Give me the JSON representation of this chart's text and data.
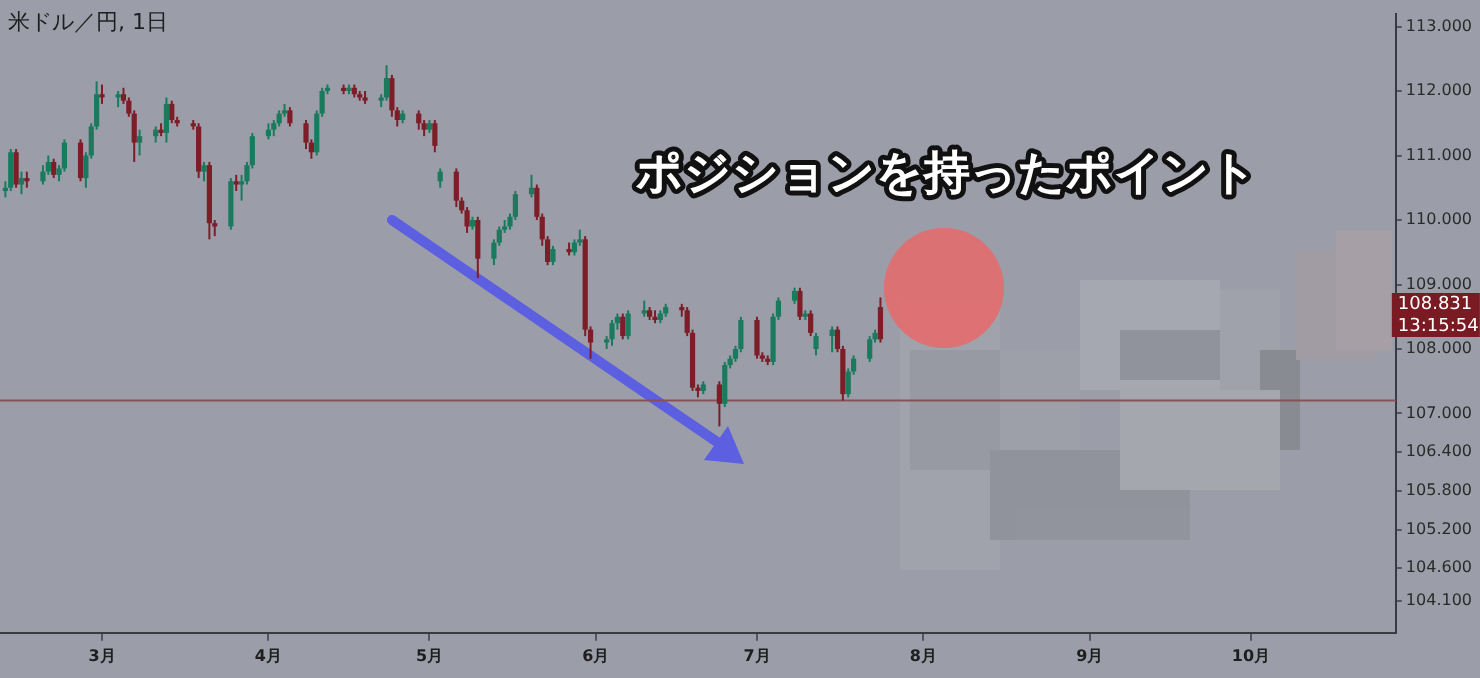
{
  "chart_data": {
    "type": "candlestick",
    "title": "米ドル／円, 1日",
    "annotations": [
      "ポジションを持ったポイント",
      "108.831",
      "13:15:54"
    ],
    "x": [
      "--02-11",
      "--02-12",
      "--02-13",
      "--02-14",
      "--02-15",
      "--02-18",
      "--02-19",
      "--02-20",
      "--02-21",
      "--02-22",
      "--02-25",
      "--02-26",
      "--02-27",
      "--02-28",
      "--03-01",
      "--03-04",
      "--03-05",
      "--03-06",
      "--03-07",
      "--03-08",
      "--03-11",
      "--03-12",
      "--03-13",
      "--03-14",
      "--03-15",
      "--03-18",
      "--03-19",
      "--03-20",
      "--03-21",
      "--03-22",
      "--03-25",
      "--03-26",
      "--03-27",
      "--03-28",
      "--03-29",
      "--04-01",
      "--04-02",
      "--04-03",
      "--04-04",
      "--04-05",
      "--04-08",
      "--04-09",
      "--04-10",
      "--04-11",
      "--04-12",
      "--04-15",
      "--04-16",
      "--04-17",
      "--04-18",
      "--04-19",
      "--04-22",
      "--04-23",
      "--04-24",
      "--04-25",
      "--04-26",
      "--04-29",
      "--04-30",
      "--05-01",
      "--05-02",
      "--05-03",
      "--05-06",
      "--05-07",
      "--05-08",
      "--05-09",
      "--05-10",
      "--05-13",
      "--05-14",
      "--05-15",
      "--05-16",
      "--05-17",
      "--05-20",
      "--05-21",
      "--05-22",
      "--05-23",
      "--05-24",
      "--05-27",
      "--05-28",
      "--05-29",
      "--05-30",
      "--05-31",
      "--06-03",
      "--06-04",
      "--06-05",
      "--06-06",
      "--06-07",
      "--06-10",
      "--06-11",
      "--06-12",
      "--06-13",
      "--06-14",
      "--06-17",
      "--06-18",
      "--06-19",
      "--06-20",
      "--06-21",
      "--06-24",
      "--06-25",
      "--06-26",
      "--06-27",
      "--06-28",
      "--07-01",
      "--07-02",
      "--07-03",
      "--07-04",
      "--07-05",
      "--07-08",
      "--07-09",
      "--07-10",
      "--07-11",
      "--07-12",
      "--07-15",
      "--07-16",
      "--07-17",
      "--07-18",
      "--07-19",
      "--07-22",
      "--07-23",
      "--07-24"
    ],
    "ohlc": [
      [
        110.45,
        110.6,
        110.35,
        110.5
      ],
      [
        110.5,
        111.1,
        110.45,
        111.05
      ],
      [
        111.05,
        111.1,
        110.5,
        110.55
      ],
      [
        110.55,
        110.75,
        110.4,
        110.65
      ],
      [
        110.65,
        110.75,
        110.5,
        110.6
      ],
      [
        110.6,
        110.85,
        110.55,
        110.75
      ],
      [
        110.75,
        111.0,
        110.7,
        110.9
      ],
      [
        110.9,
        110.95,
        110.65,
        110.7
      ],
      [
        110.7,
        110.85,
        110.6,
        110.8
      ],
      [
        110.8,
        111.25,
        110.75,
        111.2
      ],
      [
        111.2,
        111.25,
        110.6,
        110.65
      ],
      [
        110.65,
        111.05,
        110.5,
        111.0
      ],
      [
        111.0,
        111.5,
        110.95,
        111.45
      ],
      [
        111.45,
        112.15,
        111.4,
        111.95
      ],
      [
        111.95,
        112.1,
        111.8,
        111.9
      ],
      [
        111.9,
        112.0,
        111.75,
        111.95
      ],
      [
        111.95,
        112.05,
        111.8,
        111.85
      ],
      [
        111.85,
        111.9,
        111.6,
        111.65
      ],
      [
        111.65,
        111.7,
        110.9,
        111.2
      ],
      [
        111.2,
        111.4,
        111.0,
        111.3
      ],
      [
        111.3,
        111.45,
        111.2,
        111.4
      ],
      [
        111.4,
        111.5,
        111.3,
        111.35
      ],
      [
        111.35,
        111.9,
        111.2,
        111.8
      ],
      [
        111.8,
        111.85,
        111.5,
        111.55
      ],
      [
        111.55,
        111.6,
        111.45,
        111.5
      ],
      [
        111.5,
        111.55,
        111.4,
        111.45
      ],
      [
        111.45,
        111.5,
        110.65,
        110.75
      ],
      [
        110.75,
        110.9,
        110.6,
        110.85
      ],
      [
        110.85,
        110.9,
        109.7,
        109.95
      ],
      [
        109.95,
        110.0,
        109.75,
        109.9
      ],
      [
        109.9,
        110.65,
        109.85,
        110.6
      ],
      [
        110.6,
        110.7,
        110.45,
        110.55
      ],
      [
        110.55,
        110.7,
        110.3,
        110.6
      ],
      [
        110.6,
        110.9,
        110.55,
        110.85
      ],
      [
        110.85,
        111.35,
        110.8,
        111.3
      ],
      [
        111.3,
        111.5,
        111.25,
        111.4
      ],
      [
        111.4,
        111.55,
        111.3,
        111.5
      ],
      [
        111.5,
        111.7,
        111.45,
        111.65
      ],
      [
        111.65,
        111.8,
        111.6,
        111.7
      ],
      [
        111.7,
        111.75,
        111.45,
        111.5
      ],
      [
        111.5,
        111.55,
        111.1,
        111.2
      ],
      [
        111.2,
        111.25,
        110.95,
        111.05
      ],
      [
        111.05,
        111.7,
        111.0,
        111.65
      ],
      [
        111.65,
        112.05,
        111.6,
        112.0
      ],
      [
        112.0,
        112.1,
        111.95,
        112.05
      ],
      [
        112.05,
        112.1,
        111.95,
        112.0
      ],
      [
        112.0,
        112.1,
        111.95,
        112.05
      ],
      [
        112.05,
        112.1,
        111.9,
        111.95
      ],
      [
        111.95,
        112.0,
        111.85,
        111.9
      ],
      [
        111.9,
        112.0,
        111.8,
        111.85
      ],
      [
        111.85,
        111.95,
        111.75,
        111.9
      ],
      [
        111.9,
        112.4,
        111.85,
        112.2
      ],
      [
        112.2,
        112.25,
        111.6,
        111.7
      ],
      [
        111.7,
        111.75,
        111.45,
        111.55
      ],
      [
        111.55,
        111.7,
        111.5,
        111.65
      ],
      [
        111.65,
        111.7,
        111.4,
        111.5
      ],
      [
        111.5,
        111.55,
        111.3,
        111.4
      ],
      [
        111.4,
        111.55,
        111.35,
        111.5
      ],
      [
        111.5,
        111.55,
        111.05,
        111.15
      ],
      [
        110.6,
        110.8,
        110.5,
        110.75
      ],
      [
        110.75,
        110.8,
        110.2,
        110.3
      ],
      [
        110.3,
        110.35,
        110.1,
        110.15
      ],
      [
        110.15,
        110.2,
        109.8,
        109.9
      ],
      [
        109.9,
        110.05,
        109.85,
        110.0
      ],
      [
        110.0,
        110.05,
        109.1,
        109.4
      ],
      [
        109.4,
        109.7,
        109.3,
        109.65
      ],
      [
        109.65,
        109.9,
        109.6,
        109.85
      ],
      [
        109.85,
        110.0,
        109.8,
        109.9
      ],
      [
        109.9,
        110.1,
        109.85,
        110.05
      ],
      [
        110.05,
        110.45,
        110.0,
        110.4
      ],
      [
        110.4,
        110.7,
        110.35,
        110.5
      ],
      [
        110.5,
        110.55,
        110.0,
        110.05
      ],
      [
        110.05,
        110.1,
        109.6,
        109.7
      ],
      [
        109.7,
        109.75,
        109.3,
        109.35
      ],
      [
        109.35,
        109.6,
        109.3,
        109.55
      ],
      [
        109.55,
        109.65,
        109.45,
        109.5
      ],
      [
        109.5,
        109.7,
        109.45,
        109.65
      ],
      [
        109.65,
        109.85,
        109.6,
        109.7
      ],
      [
        109.7,
        109.75,
        108.2,
        108.3
      ],
      [
        108.3,
        108.35,
        107.85,
        108.1
      ],
      [
        108.1,
        108.2,
        108.0,
        108.15
      ],
      [
        108.15,
        108.45,
        108.05,
        108.4
      ],
      [
        108.4,
        108.55,
        108.3,
        108.5
      ],
      [
        108.5,
        108.55,
        108.15,
        108.2
      ],
      [
        108.2,
        108.6,
        108.15,
        108.55
      ],
      [
        108.55,
        108.75,
        108.5,
        108.6
      ],
      [
        108.6,
        108.65,
        108.45,
        108.5
      ],
      [
        108.5,
        108.6,
        108.4,
        108.45
      ],
      [
        108.45,
        108.6,
        108.4,
        108.55
      ],
      [
        108.55,
        108.7,
        108.5,
        108.65
      ],
      [
        108.65,
        108.7,
        108.5,
        108.6
      ],
      [
        108.6,
        108.65,
        108.2,
        108.25
      ],
      [
        108.25,
        108.3,
        107.35,
        107.4
      ],
      [
        107.4,
        107.45,
        107.25,
        107.35
      ],
      [
        107.35,
        107.5,
        107.3,
        107.45
      ],
      [
        107.45,
        107.5,
        106.8,
        107.15
      ],
      [
        107.15,
        107.8,
        107.1,
        107.75
      ],
      [
        107.75,
        107.9,
        107.7,
        107.85
      ],
      [
        107.85,
        108.05,
        107.8,
        108.0
      ],
      [
        108.0,
        108.5,
        107.95,
        108.45
      ],
      [
        108.45,
        108.5,
        107.85,
        107.9
      ],
      [
        107.9,
        107.95,
        107.8,
        107.85
      ],
      [
        107.85,
        107.9,
        107.75,
        107.8
      ],
      [
        107.8,
        108.55,
        107.75,
        108.5
      ],
      [
        108.5,
        108.8,
        108.45,
        108.75
      ],
      [
        108.75,
        108.95,
        108.7,
        108.9
      ],
      [
        108.9,
        108.95,
        108.45,
        108.5
      ],
      [
        108.5,
        108.6,
        108.45,
        108.55
      ],
      [
        108.55,
        108.6,
        108.2,
        108.25
      ],
      [
        108.0,
        108.25,
        107.9,
        108.2
      ],
      [
        108.2,
        108.35,
        107.95,
        108.3
      ],
      [
        108.3,
        108.35,
        107.95,
        108.0
      ],
      [
        108.0,
        108.05,
        107.2,
        107.3
      ],
      [
        107.3,
        107.7,
        107.25,
        107.65
      ],
      [
        107.65,
        107.9,
        107.6,
        107.85
      ],
      [
        107.85,
        108.2,
        107.8,
        108.15
      ],
      [
        108.15,
        108.3,
        108.1,
        108.25
      ],
      [
        108.65,
        108.8,
        108.1,
        108.15
      ]
    ],
    "colors": [
      "#1a7a5e",
      "#1a7a5e",
      "#7c1d27",
      "#1a7a5e",
      "#7c1d27",
      "#1a7a5e",
      "#1a7a5e",
      "#7c1d27",
      "#1a7a5e",
      "#1a7a5e",
      "#7c1d27",
      "#1a7a5e",
      "#1a7a5e",
      "#1a7a5e",
      "#7c1d27",
      "#1a7a5e",
      "#7c1d27",
      "#7c1d27",
      "#7c1d27",
      "#1a7a5e",
      "#1a7a5e",
      "#7c1d27",
      "#1a7a5e",
      "#7c1d27",
      "#7c1d27",
      "#7c1d27",
      "#7c1d27",
      "#1a7a5e",
      "#7c1d27",
      "#7c1d27",
      "#1a7a5e",
      "#7c1d27",
      "#1a7a5e",
      "#1a7a5e",
      "#1a7a5e",
      "#1a7a5e",
      "#1a7a5e",
      "#1a7a5e",
      "#1a7a5e",
      "#7c1d27",
      "#7c1d27",
      "#7c1d27",
      "#1a7a5e",
      "#1a7a5e",
      "#1a7a5e",
      "#7c1d27",
      "#1a7a5e",
      "#7c1d27",
      "#7c1d27",
      "#7c1d27",
      "#1a7a5e",
      "#1a7a5e",
      "#7c1d27",
      "#7c1d27",
      "#1a7a5e",
      "#7c1d27",
      "#7c1d27",
      "#1a7a5e",
      "#7c1d27",
      "#1a7a5e",
      "#7c1d27",
      "#7c1d27",
      "#7c1d27",
      "#1a7a5e",
      "#7c1d27",
      "#1a7a5e",
      "#1a7a5e",
      "#1a7a5e",
      "#1a7a5e",
      "#1a7a5e",
      "#1a7a5e",
      "#7c1d27",
      "#7c1d27",
      "#7c1d27",
      "#1a7a5e",
      "#7c1d27",
      "#1a7a5e",
      "#1a7a5e",
      "#7c1d27",
      "#7c1d27",
      "#1a7a5e",
      "#1a7a5e",
      "#1a7a5e",
      "#7c1d27",
      "#1a7a5e",
      "#1a7a5e",
      "#7c1d27",
      "#7c1d27",
      "#1a7a5e",
      "#1a7a5e",
      "#7c1d27",
      "#7c1d27",
      "#7c1d27",
      "#7c1d27",
      "#1a7a5e",
      "#7c1d27",
      "#1a7a5e",
      "#1a7a5e",
      "#1a7a5e",
      "#1a7a5e",
      "#7c1d27",
      "#7c1d27",
      "#7c1d27",
      "#1a7a5e",
      "#1a7a5e",
      "#1a7a5e",
      "#7c1d27",
      "#1a7a5e",
      "#7c1d27",
      "#1a7a5e",
      "#1a7a5e",
      "#7c1d27",
      "#7c1d27",
      "#1a7a5e",
      "#1a7a5e",
      "#1a7a5e",
      "#1a7a5e",
      "#7c1d27"
    ],
    "xlim": [
      "--02-10",
      "--10-28"
    ],
    "xticks": [
      {
        "value": "--03-01",
        "label": "3月"
      },
      {
        "value": "--04-01",
        "label": "4月"
      },
      {
        "value": "--05-01",
        "label": "5月"
      },
      {
        "value": "--06-01",
        "label": "6月"
      },
      {
        "value": "--07-01",
        "label": "7月"
      },
      {
        "value": "--08-01",
        "label": "8月"
      },
      {
        "value": "--09-01",
        "label": "9月"
      },
      {
        "value": "--10-01",
        "label": "10月"
      }
    ],
    "ylim": [
      103.6,
      113.2
    ],
    "yticks": [
      {
        "value": 113,
        "label": "113.000"
      },
      {
        "value": 112,
        "label": "112.000"
      },
      {
        "value": 111,
        "label": "111.000"
      },
      {
        "value": 110,
        "label": "110.000"
      },
      {
        "value": 109,
        "label": "109.000"
      },
      {
        "value": 108,
        "label": "108.000"
      },
      {
        "value": 107,
        "label": "107.000"
      },
      {
        "value": 106.4,
        "label": "106.400"
      },
      {
        "value": 105.8,
        "label": "105.800"
      },
      {
        "value": 105.2,
        "label": "105.200"
      },
      {
        "value": 104.6,
        "label": "104.600"
      },
      {
        "value": 104.1,
        "label": "104.100"
      }
    ],
    "ref_lines": [
      {
        "axis": "y",
        "value": 107.2,
        "color": "#8a5058"
      }
    ],
    "grid": false,
    "legend": false
  }
}
